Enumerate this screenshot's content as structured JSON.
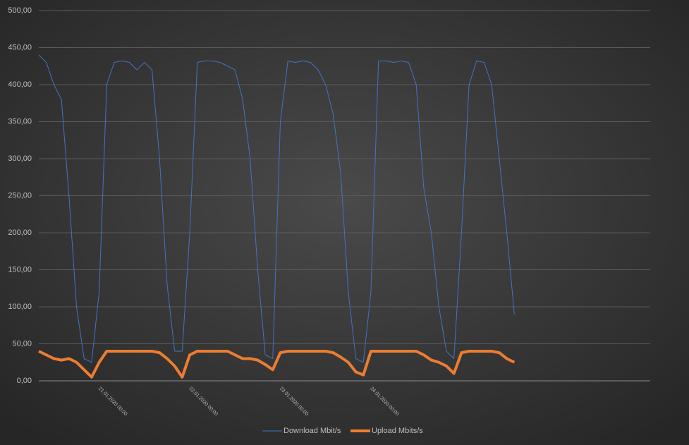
{
  "chart_data": {
    "type": "line",
    "categories": [
      null,
      null,
      null,
      null,
      null,
      null,
      null,
      null,
      "21.01.2020 00:00",
      null,
      null,
      null,
      null,
      null,
      null,
      null,
      null,
      null,
      null,
      null,
      "22.01.2020 00:00",
      null,
      null,
      null,
      null,
      null,
      null,
      null,
      null,
      null,
      null,
      null,
      "23.01.2020 00:00",
      null,
      null,
      null,
      null,
      null,
      null,
      null,
      null,
      null,
      null,
      null,
      "24.01.2020 00:00",
      null,
      null,
      null,
      null,
      null,
      null,
      null,
      null,
      null,
      null,
      null,
      null,
      null,
      null,
      null,
      null,
      null,
      null,
      null,
      null,
      null,
      null,
      null,
      null,
      null,
      null,
      null,
      null,
      null,
      null,
      null,
      null,
      null,
      null,
      null,
      null,
      null
    ],
    "series": [
      {
        "name": "Download Mbit/s",
        "color": "#4472c4",
        "width": 1,
        "values": [
          440,
          430,
          400,
          380,
          250,
          100,
          30,
          25,
          120,
          400,
          430,
          432,
          430,
          420,
          430,
          420,
          300,
          130,
          40,
          40,
          200,
          430,
          432,
          432,
          430,
          425,
          420,
          380,
          300,
          150,
          35,
          30,
          350,
          432,
          430,
          432,
          430,
          420,
          400,
          360,
          280,
          120,
          30,
          25,
          120,
          432,
          432,
          430,
          432,
          430,
          400,
          260,
          200,
          100,
          40,
          30,
          200,
          400,
          432,
          430,
          400,
          300,
          200,
          90,
          null,
          null,
          null,
          null,
          null,
          null,
          null,
          null,
          null,
          null,
          null,
          null,
          null,
          null,
          null,
          null,
          null,
          null
        ]
      },
      {
        "name": "Upload Mbits/s",
        "color": "#ed7d31",
        "width": 4,
        "values": [
          40,
          35,
          30,
          28,
          30,
          25,
          15,
          5,
          25,
          40,
          40,
          40,
          40,
          40,
          40,
          40,
          38,
          30,
          20,
          5,
          35,
          40,
          40,
          40,
          40,
          40,
          35,
          30,
          30,
          28,
          22,
          15,
          38,
          40,
          40,
          40,
          40,
          40,
          40,
          38,
          32,
          25,
          12,
          8,
          40,
          40,
          40,
          40,
          40,
          40,
          40,
          35,
          28,
          25,
          20,
          10,
          38,
          40,
          40,
          40,
          40,
          38,
          30,
          25,
          null,
          null,
          null,
          null,
          null,
          null,
          null,
          null,
          null,
          null,
          null,
          null,
          null,
          null,
          null,
          null,
          null,
          null
        ]
      }
    ],
    "ylim": [
      0,
      500
    ],
    "yticks": [
      {
        "value": 0,
        "label": "0,00"
      },
      {
        "value": 50,
        "label": "50,00"
      },
      {
        "value": 100,
        "label": "100,00"
      },
      {
        "value": 150,
        "label": "150,00"
      },
      {
        "value": 200,
        "label": "200,00"
      },
      {
        "value": 250,
        "label": "250,00"
      },
      {
        "value": 300,
        "label": "300,00"
      },
      {
        "value": 350,
        "label": "350,00"
      },
      {
        "value": 400,
        "label": "400,00"
      },
      {
        "value": 450,
        "label": "450,00"
      },
      {
        "value": 500,
        "label": "500,00"
      }
    ],
    "grid": true,
    "legend": "bottom"
  }
}
